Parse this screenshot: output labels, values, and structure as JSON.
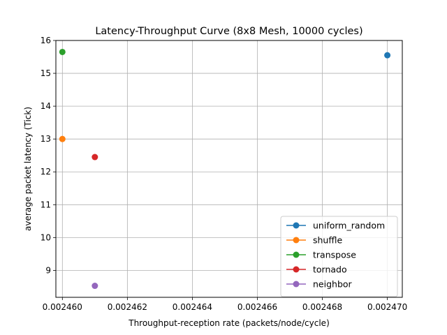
{
  "chart_data": {
    "type": "scatter",
    "title": "Latency-Throughput Curve (8x8 Mesh, 10000 cycles)",
    "xlabel": "Throughput-reception rate (packets/node/cycle)",
    "ylabel": "average packet latency (Tick)",
    "xlim": [
      0.0024598,
      0.00247046
    ],
    "ylim": [
      8.18,
      16.0
    ],
    "xticks": [
      "0.002460",
      "0.002462",
      "0.002464",
      "0.002466",
      "0.002468",
      "0.002470"
    ],
    "xtick_values": [
      0.00246,
      0.002462,
      0.002464,
      0.002466,
      0.002468,
      0.00247
    ],
    "yticks": [
      "9",
      "10",
      "11",
      "12",
      "13",
      "14",
      "15",
      "16"
    ],
    "ytick_values": [
      9,
      10,
      11,
      12,
      13,
      14,
      15,
      16
    ],
    "grid": true,
    "legend_position": "lower-right",
    "series": [
      {
        "name": "uniform_random",
        "color": "#1f77b4",
        "x": [
          0.00247
        ],
        "y": [
          15.55
        ]
      },
      {
        "name": "shuffle",
        "color": "#ff7f0e",
        "x": [
          0.00246
        ],
        "y": [
          13.0
        ]
      },
      {
        "name": "transpose",
        "color": "#2ca02c",
        "x": [
          0.00246
        ],
        "y": [
          15.65
        ]
      },
      {
        "name": "tornado",
        "color": "#d62728",
        "x": [
          0.002461
        ],
        "y": [
          12.45
        ]
      },
      {
        "name": "neighbor",
        "color": "#9467bd",
        "x": [
          0.002461
        ],
        "y": [
          8.53
        ]
      }
    ]
  }
}
